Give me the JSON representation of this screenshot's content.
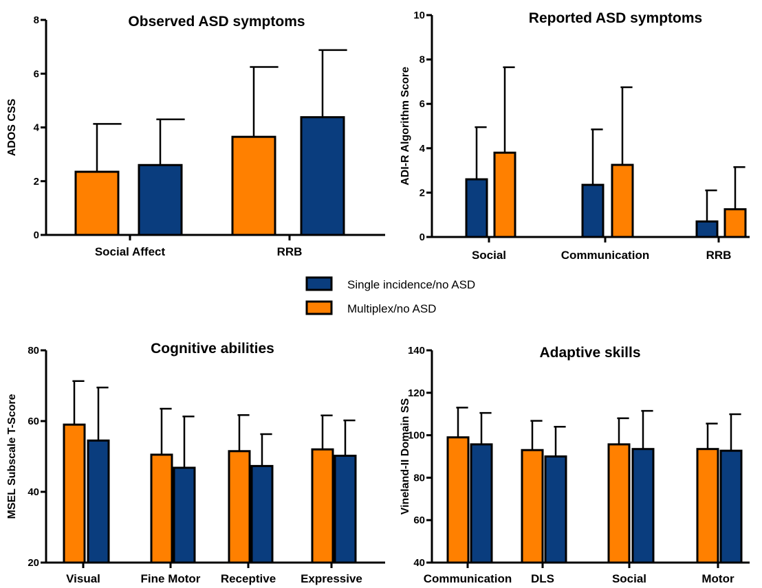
{
  "colors": {
    "orange": "#FF8000",
    "blue": "#0A3D7E"
  },
  "legend": [
    {
      "label": "Single incidence/no ASD",
      "color": "#0A3D7E"
    },
    {
      "label": "Multiplex/no ASD",
      "color": "#FF8000"
    }
  ],
  "chart_data": [
    {
      "type": "bar",
      "title": "Observed ASD symptoms",
      "ylabel": "ADOS CSS",
      "ylim": [
        0,
        8
      ],
      "yticks": [
        0,
        2,
        4,
        6,
        8
      ],
      "categories": [
        "Social Affect",
        "RRB"
      ],
      "series": [
        {
          "color": "#FF8000",
          "values": [
            2.35,
            3.65
          ],
          "errors": [
            1.78,
            2.6
          ]
        },
        {
          "color": "#0A3D7E",
          "values": [
            2.6,
            4.38
          ],
          "errors": [
            1.7,
            2.5
          ]
        }
      ]
    },
    {
      "type": "bar",
      "title": "Reported ASD symptoms",
      "ylabel": "ADI-R Algorithm Score",
      "ylim": [
        0,
        10
      ],
      "yticks": [
        0,
        2,
        4,
        6,
        8,
        10
      ],
      "categories": [
        "Social",
        "Communication",
        "RRB"
      ],
      "series": [
        {
          "color": "#0A3D7E",
          "values": [
            2.6,
            2.35,
            0.7
          ],
          "errors": [
            2.35,
            2.5,
            1.4
          ]
        },
        {
          "color": "#FF8000",
          "values": [
            3.8,
            3.25,
            1.25
          ],
          "errors": [
            3.85,
            3.5,
            1.9
          ]
        }
      ]
    },
    {
      "type": "bar",
      "title": "Cognitive abilities",
      "ylabel": "MSEL Subscale T-Score",
      "ylim": [
        20,
        80
      ],
      "yticks": [
        20,
        40,
        60,
        80
      ],
      "categories": [
        "Visual",
        "Fine Motor",
        "Receptive",
        "Expressive"
      ],
      "series": [
        {
          "color": "#FF8000",
          "values": [
            59,
            50.5,
            51.5,
            52
          ],
          "errors": [
            12.3,
            13,
            10.2,
            9.6
          ]
        },
        {
          "color": "#0A3D7E",
          "values": [
            54.5,
            46.8,
            47.3,
            50.2
          ],
          "errors": [
            15,
            14.5,
            9,
            10
          ]
        }
      ]
    },
    {
      "type": "bar",
      "title": "Adaptive skills",
      "ylabel": "Vineland-II Domain SS",
      "ylim": [
        40,
        140
      ],
      "yticks": [
        40,
        60,
        80,
        100,
        120,
        140
      ],
      "categories": [
        "Communication",
        "DLS",
        "Social",
        "Motor"
      ],
      "series": [
        {
          "color": "#FF8000",
          "values": [
            99,
            93,
            95.7,
            93.5
          ],
          "errors": [
            14,
            13.8,
            12.3,
            12
          ]
        },
        {
          "color": "#0A3D7E",
          "values": [
            95.7,
            90,
            93.5,
            92.7
          ],
          "errors": [
            14.8,
            14,
            18,
            17.2
          ]
        }
      ]
    }
  ]
}
